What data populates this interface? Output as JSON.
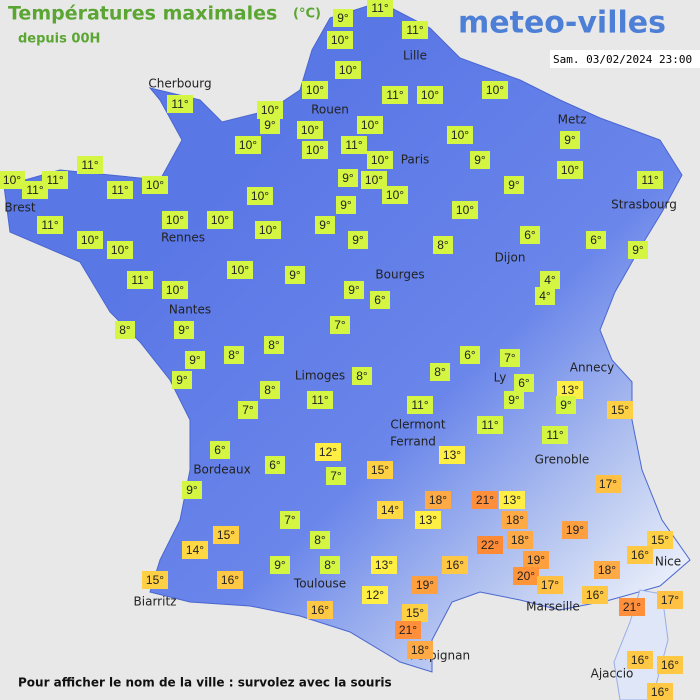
{
  "header": {
    "title": "Températures maximales",
    "unit": "(°C)",
    "subtitle": "depuis 00H",
    "logo": "meteo-villes",
    "date": "Sam. 03/02/2024 23:00"
  },
  "footer": "Pour afficher le nom de la ville : survolez avec la souris",
  "cities": [
    "Cherbourg",
    "Lille",
    "Rouen",
    "Paris",
    "Metz",
    "Brest",
    "Rennes",
    "Strasbourg",
    "Dijon",
    "Bourges",
    "Nantes",
    "Annecy",
    "Limoges",
    "Ly",
    "Clermont",
    "Ferrand",
    "Grenoble",
    "Bordeaux",
    "Nice",
    "Toulouse",
    "Biarritz",
    "Marseille",
    "Perpignan",
    "Ajaccio"
  ],
  "labels": [
    {
      "text": "9°",
      "color": "#d4f542"
    },
    {
      "text": "11°",
      "color": "#d4f542"
    },
    {
      "text": "10°",
      "color": "#d4f542"
    },
    {
      "text": "11°",
      "color": "#d4f542"
    },
    {
      "text": "10°",
      "color": "#d4f542"
    },
    {
      "text": "10°",
      "color": "#d4f542"
    },
    {
      "text": "11°",
      "color": "#d4f542"
    },
    {
      "text": "10°",
      "color": "#d4f542"
    },
    {
      "text": "10°",
      "color": "#d4f542"
    },
    {
      "text": "11°",
      "color": "#d4f542"
    },
    {
      "text": "10°",
      "color": "#d4f542"
    },
    {
      "text": "9°",
      "color": "#d4f542"
    },
    {
      "text": "10°",
      "color": "#d4f542"
    },
    {
      "text": "10°",
      "color": "#d4f542"
    },
    {
      "text": "10°",
      "color": "#d4f542"
    },
    {
      "text": "10°",
      "color": "#d4f542"
    },
    {
      "text": "11°",
      "color": "#d4f542"
    },
    {
      "text": "10°",
      "color": "#d4f542"
    },
    {
      "text": "10°",
      "color": "#d4f542"
    },
    {
      "text": "9°",
      "color": "#d4f542"
    },
    {
      "text": "9°",
      "color": "#d4f542"
    },
    {
      "text": "10°",
      "color": "#d4f542"
    },
    {
      "text": "11°",
      "color": "#d4f542"
    },
    {
      "text": "10°",
      "color": "#d4f542"
    },
    {
      "text": "11°",
      "color": "#d4f542"
    },
    {
      "text": "11°",
      "color": "#d4f542"
    },
    {
      "text": "11°",
      "color": "#d4f542"
    },
    {
      "text": "10°",
      "color": "#d4f542"
    },
    {
      "text": "9°",
      "color": "#d4f542"
    },
    {
      "text": "10°",
      "color": "#d4f542"
    },
    {
      "text": "10°",
      "color": "#d4f542"
    },
    {
      "text": "9°",
      "color": "#d4f542"
    },
    {
      "text": "11°",
      "color": "#d4f542"
    },
    {
      "text": "10°",
      "color": "#d4f542"
    },
    {
      "text": "9°",
      "color": "#d4f542"
    },
    {
      "text": "11°",
      "color": "#d4f542"
    },
    {
      "text": "10°",
      "color": "#d4f542"
    },
    {
      "text": "10°",
      "color": "#d4f542"
    },
    {
      "text": "10°",
      "color": "#d4f542"
    },
    {
      "text": "9°",
      "color": "#d4f542"
    },
    {
      "text": "10°",
      "color": "#d4f542"
    },
    {
      "text": "10°",
      "color": "#d4f542"
    },
    {
      "text": "10°",
      "color": "#d4f542"
    },
    {
      "text": "9°",
      "color": "#d4f542"
    },
    {
      "text": "8°",
      "color": "#d4f542"
    },
    {
      "text": "6°",
      "color": "#d4f542"
    },
    {
      "text": "6°",
      "color": "#d4f542"
    },
    {
      "text": "9°",
      "color": "#d4f542"
    },
    {
      "text": "10°",
      "color": "#d4f542"
    },
    {
      "text": "9°",
      "color": "#d4f542"
    },
    {
      "text": "11°",
      "color": "#d4f542"
    },
    {
      "text": "10°",
      "color": "#d4f542"
    },
    {
      "text": "9°",
      "color": "#d4f542"
    },
    {
      "text": "6°",
      "color": "#d4f542"
    },
    {
      "text": "4°",
      "color": "#d4f542"
    },
    {
      "text": "4°",
      "color": "#d4f542"
    },
    {
      "text": "8°",
      "color": "#d4f542"
    },
    {
      "text": "9°",
      "color": "#d4f542"
    },
    {
      "text": "7°",
      "color": "#d4f542"
    },
    {
      "text": "8°",
      "color": "#d4f542"
    },
    {
      "text": "8°",
      "color": "#d4f542"
    },
    {
      "text": "9°",
      "color": "#d4f542"
    },
    {
      "text": "9°",
      "color": "#d4f542"
    },
    {
      "text": "6°",
      "color": "#d4f542"
    },
    {
      "text": "7°",
      "color": "#d4f542"
    },
    {
      "text": "8°",
      "color": "#d4f542"
    },
    {
      "text": "8°",
      "color": "#d4f542"
    },
    {
      "text": "6°",
      "color": "#d4f542"
    },
    {
      "text": "13°",
      "color": "#ffee44"
    },
    {
      "text": "8°",
      "color": "#d4f542"
    },
    {
      "text": "9°",
      "color": "#d4f542"
    },
    {
      "text": "9°",
      "color": "#d4f542"
    },
    {
      "text": "15°",
      "color": "#ffd044"
    },
    {
      "text": "7°",
      "color": "#d4f542"
    },
    {
      "text": "11°",
      "color": "#d4f542"
    },
    {
      "text": "11°",
      "color": "#d4f542"
    },
    {
      "text": "11°",
      "color": "#d4f542"
    },
    {
      "text": "11°",
      "color": "#d4f542"
    },
    {
      "text": "6°",
      "color": "#d4f542"
    },
    {
      "text": "12°",
      "color": "#ffee44"
    },
    {
      "text": "13°",
      "color": "#ffee44"
    },
    {
      "text": "6°",
      "color": "#d4f542"
    },
    {
      "text": "7°",
      "color": "#d4f542"
    },
    {
      "text": "15°",
      "color": "#ffd044"
    },
    {
      "text": "17°",
      "color": "#ffc044"
    },
    {
      "text": "9°",
      "color": "#d4f542"
    },
    {
      "text": "18°",
      "color": "#ffaa44"
    },
    {
      "text": "21°",
      "color": "#ff8f3a"
    },
    {
      "text": "13°",
      "color": "#ffee44"
    },
    {
      "text": "14°",
      "color": "#ffd844"
    },
    {
      "text": "13°",
      "color": "#ffee44"
    },
    {
      "text": "18°",
      "color": "#ffaa44"
    },
    {
      "text": "7°",
      "color": "#d4f542"
    },
    {
      "text": "15°",
      "color": "#ffd044"
    },
    {
      "text": "19°",
      "color": "#ffa040"
    },
    {
      "text": "8°",
      "color": "#d4f542"
    },
    {
      "text": "18°",
      "color": "#ffaa44"
    },
    {
      "text": "22°",
      "color": "#ff8a35"
    },
    {
      "text": "14°",
      "color": "#ffd844"
    },
    {
      "text": "15°",
      "color": "#ffd044"
    },
    {
      "text": "16°",
      "color": "#ffc844"
    },
    {
      "text": "9°",
      "color": "#d4f542"
    },
    {
      "text": "8°",
      "color": "#d4f542"
    },
    {
      "text": "13°",
      "color": "#ffee44"
    },
    {
      "text": "16°",
      "color": "#ffc844"
    },
    {
      "text": "19°",
      "color": "#ffa040"
    },
    {
      "text": "20°",
      "color": "#ff9438"
    },
    {
      "text": "18°",
      "color": "#ffaa44"
    },
    {
      "text": "15°",
      "color": "#ffd044"
    },
    {
      "text": "16°",
      "color": "#ffc844"
    },
    {
      "text": "19°",
      "color": "#ffa040"
    },
    {
      "text": "17°",
      "color": "#ffc044"
    },
    {
      "text": "16°",
      "color": "#ffc844"
    },
    {
      "text": "12°",
      "color": "#ffee44"
    },
    {
      "text": "21°",
      "color": "#ff8f3a"
    },
    {
      "text": "17°",
      "color": "#ffc044"
    },
    {
      "text": "16°",
      "color": "#ffc844"
    },
    {
      "text": "15°",
      "color": "#ffd044"
    },
    {
      "text": "21°",
      "color": "#ff8f3a"
    },
    {
      "text": "18°",
      "color": "#ffaa44"
    },
    {
      "text": "16°",
      "color": "#ffc844"
    },
    {
      "text": "16°",
      "color": "#ffc844"
    },
    {
      "text": "16°",
      "color": "#ffc844"
    }
  ]
}
